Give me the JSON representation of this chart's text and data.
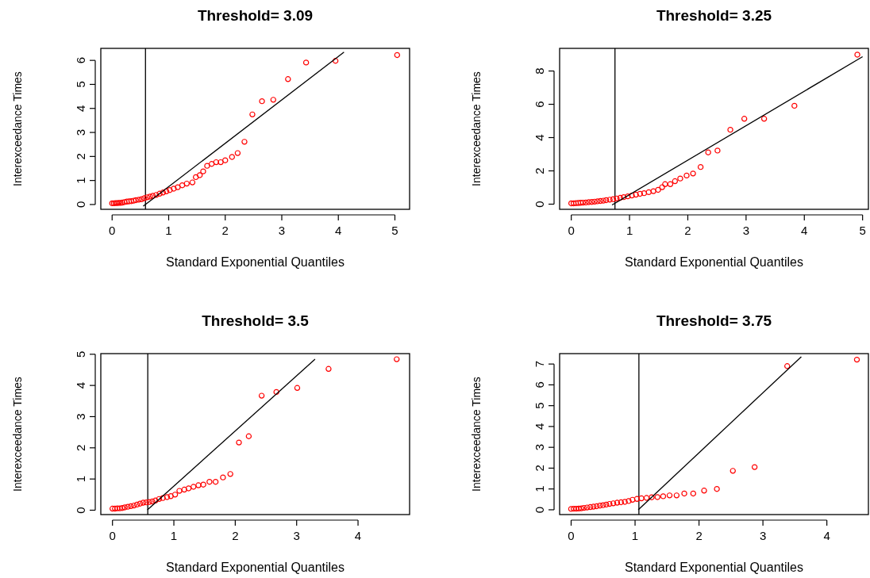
{
  "chart_data": [
    {
      "type": "scatter",
      "title": "Threshold= 3.09",
      "xlabel": "Standard Exponential Quantiles",
      "ylabel": "Interexceedance Times",
      "xlim": [
        -0.2,
        5.26
      ],
      "ylim": [
        -0.2,
        6.5
      ],
      "xticks": [
        0,
        1,
        2,
        3,
        4,
        5
      ],
      "yticks": [
        0,
        1,
        2,
        3,
        4,
        5,
        6
      ],
      "marker": "circle",
      "ref_lines": [
        {
          "axis": "x",
          "value": 0.59,
          "color": "#000000"
        }
      ],
      "series": [
        {
          "color": "#ff0000",
          "x": [
            0,
            0.03,
            0.06,
            0.09,
            0.12,
            0.15,
            0.18,
            0.22,
            0.26,
            0.3,
            0.34,
            0.38,
            0.42,
            0.47,
            0.52,
            0.57,
            0.62,
            0.67,
            0.72,
            0.78,
            0.84,
            0.9,
            0.96,
            1.02,
            1.09,
            1.16,
            1.24,
            1.32,
            1.42,
            1.48,
            1.55,
            1.61,
            1.68,
            1.76,
            1.84,
            1.92,
            2.0,
            2.12,
            2.22,
            2.34,
            2.48,
            2.65,
            2.85,
            3.11,
            3.43,
            3.95,
            5.04
          ],
          "values": [
            0.05,
            0.05,
            0.06,
            0.06,
            0.07,
            0.07,
            0.08,
            0.1,
            0.12,
            0.13,
            0.14,
            0.16,
            0.18,
            0.2,
            0.22,
            0.26,
            0.3,
            0.33,
            0.36,
            0.4,
            0.45,
            0.5,
            0.55,
            0.6,
            0.66,
            0.72,
            0.8,
            0.87,
            0.92,
            1.14,
            1.22,
            1.38,
            1.61,
            1.69,
            1.76,
            1.76,
            1.84,
            1.98,
            2.14,
            2.61,
            3.75,
            4.3,
            4.36,
            5.22,
            5.91,
            5.98,
            6.22
          ]
        },
        {
          "type": "line",
          "marker": "none",
          "color": "#000000",
          "x": [
            0.55,
            4.1
          ],
          "values": [
            -0.07,
            6.34
          ]
        }
      ]
    },
    {
      "type": "scatter",
      "title": "Threshold= 3.25",
      "xlabel": "Standard Exponential Quantiles",
      "ylabel": "Interexceedance Times",
      "xlim": [
        -0.2,
        5.1
      ],
      "ylim": [
        -0.31,
        9.36
      ],
      "xticks": [
        0,
        1,
        2,
        3,
        4,
        5
      ],
      "yticks": [
        0,
        2,
        4,
        6,
        8
      ],
      "marker": "circle",
      "ref_lines": [
        {
          "axis": "x",
          "value": 0.75,
          "color": "#000000"
        }
      ],
      "series": [
        {
          "color": "#ff0000",
          "x": [
            0,
            0.04,
            0.08,
            0.12,
            0.16,
            0.2,
            0.25,
            0.3,
            0.35,
            0.4,
            0.45,
            0.5,
            0.55,
            0.6,
            0.66,
            0.72,
            0.78,
            0.84,
            0.9,
            0.97,
            1.04,
            1.11,
            1.18,
            1.25,
            1.33,
            1.41,
            1.49,
            1.56,
            1.61,
            1.7,
            1.78,
            1.87,
            1.98,
            2.09,
            2.22,
            2.35,
            2.51,
            2.73,
            2.97,
            3.31,
            3.83,
            4.91
          ],
          "values": [
            0.05,
            0.05,
            0.06,
            0.07,
            0.08,
            0.09,
            0.1,
            0.12,
            0.13,
            0.15,
            0.17,
            0.19,
            0.21,
            0.24,
            0.27,
            0.3,
            0.34,
            0.38,
            0.42,
            0.47,
            0.52,
            0.57,
            0.62,
            0.66,
            0.72,
            0.78,
            0.86,
            1.02,
            1.2,
            1.2,
            1.38,
            1.54,
            1.72,
            1.84,
            2.23,
            3.11,
            3.22,
            4.47,
            5.13,
            5.13,
            5.91,
            8.98
          ]
        },
        {
          "type": "line",
          "marker": "none",
          "color": "#000000",
          "x": [
            0.7,
            5.0
          ],
          "values": [
            -0.05,
            8.86
          ]
        }
      ]
    },
    {
      "type": "scatter",
      "title": "Threshold= 3.5",
      "xlabel": "Standard Exponential Quantiles",
      "ylabel": "Interexceedance Times",
      "xlim": [
        -0.19,
        4.84
      ],
      "ylim": [
        -0.14,
        5.02
      ],
      "xticks": [
        0,
        1,
        2,
        3,
        4
      ],
      "yticks": [
        0,
        1,
        2,
        3,
        4,
        5
      ],
      "marker": "circle",
      "ref_lines": [
        {
          "axis": "x",
          "value": 0.575,
          "color": "#000000"
        }
      ],
      "series": [
        {
          "color": "#ff0000",
          "x": [
            0,
            0.04,
            0.08,
            0.12,
            0.16,
            0.2,
            0.25,
            0.3,
            0.35,
            0.4,
            0.45,
            0.5,
            0.55,
            0.6,
            0.65,
            0.7,
            0.76,
            0.82,
            0.89,
            0.95,
            1.02,
            1.09,
            1.17,
            1.24,
            1.32,
            1.4,
            1.48,
            1.58,
            1.68,
            1.8,
            1.92,
            2.06,
            2.22,
            2.43,
            2.67,
            3.01,
            3.52,
            4.63
          ],
          "values": [
            0.05,
            0.05,
            0.06,
            0.06,
            0.07,
            0.09,
            0.11,
            0.13,
            0.15,
            0.18,
            0.21,
            0.24,
            0.25,
            0.26,
            0.28,
            0.31,
            0.36,
            0.39,
            0.42,
            0.45,
            0.5,
            0.62,
            0.66,
            0.7,
            0.75,
            0.8,
            0.82,
            0.91,
            0.91,
            1.05,
            1.16,
            2.17,
            2.37,
            3.67,
            3.79,
            3.92,
            4.53,
            4.84
          ]
        },
        {
          "type": "line",
          "marker": "none",
          "color": "#000000",
          "x": [
            0.57,
            3.3
          ],
          "values": [
            0.01,
            4.84
          ]
        }
      ]
    },
    {
      "type": "scatter",
      "title": "Threshold= 3.75",
      "xlabel": "Standard Exponential Quantiles",
      "ylabel": "Interexceedance Times",
      "xlim": [
        -0.18,
        4.65
      ],
      "ylim": [
        -0.23,
        7.5
      ],
      "xticks": [
        0,
        1,
        2,
        3,
        4
      ],
      "yticks": [
        0,
        1,
        2,
        3,
        4,
        5,
        6,
        7
      ],
      "marker": "circle",
      "ref_lines": [
        {
          "axis": "x",
          "value": 1.06,
          "color": "#000000"
        }
      ],
      "series": [
        {
          "color": "#ff0000",
          "x": [
            0,
            0.04,
            0.08,
            0.12,
            0.16,
            0.2,
            0.25,
            0.3,
            0.35,
            0.4,
            0.45,
            0.5,
            0.55,
            0.6,
            0.66,
            0.72,
            0.78,
            0.84,
            0.9,
            0.96,
            1.03,
            1.1,
            1.18,
            1.26,
            1.35,
            1.44,
            1.54,
            1.65,
            1.77,
            1.91,
            2.08,
            2.28,
            2.53,
            2.87,
            3.38,
            4.47
          ],
          "values": [
            0.04,
            0.05,
            0.05,
            0.06,
            0.07,
            0.09,
            0.11,
            0.13,
            0.15,
            0.17,
            0.2,
            0.22,
            0.25,
            0.28,
            0.31,
            0.34,
            0.36,
            0.38,
            0.42,
            0.48,
            0.52,
            0.55,
            0.57,
            0.6,
            0.61,
            0.65,
            0.69,
            0.69,
            0.78,
            0.78,
            0.92,
            1.0,
            1.87,
            2.05,
            6.9,
            7.21
          ]
        },
        {
          "type": "line",
          "marker": "none",
          "color": "#000000",
          "x": [
            1.05,
            3.6
          ],
          "values": [
            0.0,
            7.35
          ]
        }
      ]
    }
  ]
}
